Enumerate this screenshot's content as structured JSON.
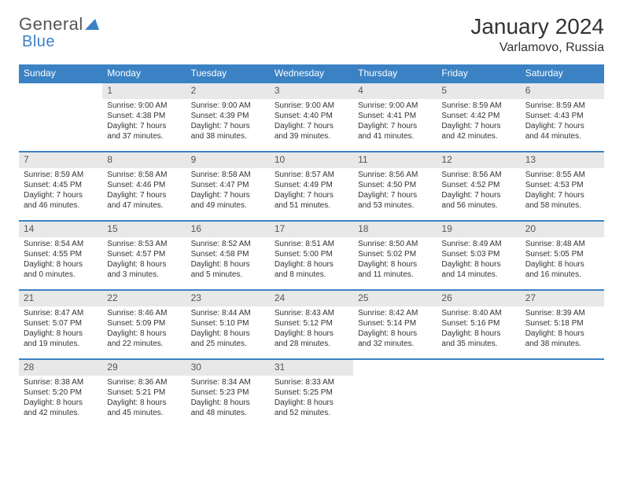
{
  "logo": {
    "text1": "General",
    "text2": "Blue"
  },
  "title": "January 2024",
  "location": "Varlamovo, Russia",
  "weekdays": [
    "Sunday",
    "Monday",
    "Tuesday",
    "Wednesday",
    "Thursday",
    "Friday",
    "Saturday"
  ],
  "colors": {
    "header_bg": "#3b82c4",
    "border": "#3b82c4",
    "daynum_bg": "#e8e8e8"
  },
  "weeks": [
    [
      null,
      {
        "n": "1",
        "sr": "Sunrise: 9:00 AM",
        "ss": "Sunset: 4:38 PM",
        "d1": "Daylight: 7 hours",
        "d2": "and 37 minutes."
      },
      {
        "n": "2",
        "sr": "Sunrise: 9:00 AM",
        "ss": "Sunset: 4:39 PM",
        "d1": "Daylight: 7 hours",
        "d2": "and 38 minutes."
      },
      {
        "n": "3",
        "sr": "Sunrise: 9:00 AM",
        "ss": "Sunset: 4:40 PM",
        "d1": "Daylight: 7 hours",
        "d2": "and 39 minutes."
      },
      {
        "n": "4",
        "sr": "Sunrise: 9:00 AM",
        "ss": "Sunset: 4:41 PM",
        "d1": "Daylight: 7 hours",
        "d2": "and 41 minutes."
      },
      {
        "n": "5",
        "sr": "Sunrise: 8:59 AM",
        "ss": "Sunset: 4:42 PM",
        "d1": "Daylight: 7 hours",
        "d2": "and 42 minutes."
      },
      {
        "n": "6",
        "sr": "Sunrise: 8:59 AM",
        "ss": "Sunset: 4:43 PM",
        "d1": "Daylight: 7 hours",
        "d2": "and 44 minutes."
      }
    ],
    [
      {
        "n": "7",
        "sr": "Sunrise: 8:59 AM",
        "ss": "Sunset: 4:45 PM",
        "d1": "Daylight: 7 hours",
        "d2": "and 46 minutes."
      },
      {
        "n": "8",
        "sr": "Sunrise: 8:58 AM",
        "ss": "Sunset: 4:46 PM",
        "d1": "Daylight: 7 hours",
        "d2": "and 47 minutes."
      },
      {
        "n": "9",
        "sr": "Sunrise: 8:58 AM",
        "ss": "Sunset: 4:47 PM",
        "d1": "Daylight: 7 hours",
        "d2": "and 49 minutes."
      },
      {
        "n": "10",
        "sr": "Sunrise: 8:57 AM",
        "ss": "Sunset: 4:49 PM",
        "d1": "Daylight: 7 hours",
        "d2": "and 51 minutes."
      },
      {
        "n": "11",
        "sr": "Sunrise: 8:56 AM",
        "ss": "Sunset: 4:50 PM",
        "d1": "Daylight: 7 hours",
        "d2": "and 53 minutes."
      },
      {
        "n": "12",
        "sr": "Sunrise: 8:56 AM",
        "ss": "Sunset: 4:52 PM",
        "d1": "Daylight: 7 hours",
        "d2": "and 56 minutes."
      },
      {
        "n": "13",
        "sr": "Sunrise: 8:55 AM",
        "ss": "Sunset: 4:53 PM",
        "d1": "Daylight: 7 hours",
        "d2": "and 58 minutes."
      }
    ],
    [
      {
        "n": "14",
        "sr": "Sunrise: 8:54 AM",
        "ss": "Sunset: 4:55 PM",
        "d1": "Daylight: 8 hours",
        "d2": "and 0 minutes."
      },
      {
        "n": "15",
        "sr": "Sunrise: 8:53 AM",
        "ss": "Sunset: 4:57 PM",
        "d1": "Daylight: 8 hours",
        "d2": "and 3 minutes."
      },
      {
        "n": "16",
        "sr": "Sunrise: 8:52 AM",
        "ss": "Sunset: 4:58 PM",
        "d1": "Daylight: 8 hours",
        "d2": "and 5 minutes."
      },
      {
        "n": "17",
        "sr": "Sunrise: 8:51 AM",
        "ss": "Sunset: 5:00 PM",
        "d1": "Daylight: 8 hours",
        "d2": "and 8 minutes."
      },
      {
        "n": "18",
        "sr": "Sunrise: 8:50 AM",
        "ss": "Sunset: 5:02 PM",
        "d1": "Daylight: 8 hours",
        "d2": "and 11 minutes."
      },
      {
        "n": "19",
        "sr": "Sunrise: 8:49 AM",
        "ss": "Sunset: 5:03 PM",
        "d1": "Daylight: 8 hours",
        "d2": "and 14 minutes."
      },
      {
        "n": "20",
        "sr": "Sunrise: 8:48 AM",
        "ss": "Sunset: 5:05 PM",
        "d1": "Daylight: 8 hours",
        "d2": "and 16 minutes."
      }
    ],
    [
      {
        "n": "21",
        "sr": "Sunrise: 8:47 AM",
        "ss": "Sunset: 5:07 PM",
        "d1": "Daylight: 8 hours",
        "d2": "and 19 minutes."
      },
      {
        "n": "22",
        "sr": "Sunrise: 8:46 AM",
        "ss": "Sunset: 5:09 PM",
        "d1": "Daylight: 8 hours",
        "d2": "and 22 minutes."
      },
      {
        "n": "23",
        "sr": "Sunrise: 8:44 AM",
        "ss": "Sunset: 5:10 PM",
        "d1": "Daylight: 8 hours",
        "d2": "and 25 minutes."
      },
      {
        "n": "24",
        "sr": "Sunrise: 8:43 AM",
        "ss": "Sunset: 5:12 PM",
        "d1": "Daylight: 8 hours",
        "d2": "and 28 minutes."
      },
      {
        "n": "25",
        "sr": "Sunrise: 8:42 AM",
        "ss": "Sunset: 5:14 PM",
        "d1": "Daylight: 8 hours",
        "d2": "and 32 minutes."
      },
      {
        "n": "26",
        "sr": "Sunrise: 8:40 AM",
        "ss": "Sunset: 5:16 PM",
        "d1": "Daylight: 8 hours",
        "d2": "and 35 minutes."
      },
      {
        "n": "27",
        "sr": "Sunrise: 8:39 AM",
        "ss": "Sunset: 5:18 PM",
        "d1": "Daylight: 8 hours",
        "d2": "and 38 minutes."
      }
    ],
    [
      {
        "n": "28",
        "sr": "Sunrise: 8:38 AM",
        "ss": "Sunset: 5:20 PM",
        "d1": "Daylight: 8 hours",
        "d2": "and 42 minutes."
      },
      {
        "n": "29",
        "sr": "Sunrise: 8:36 AM",
        "ss": "Sunset: 5:21 PM",
        "d1": "Daylight: 8 hours",
        "d2": "and 45 minutes."
      },
      {
        "n": "30",
        "sr": "Sunrise: 8:34 AM",
        "ss": "Sunset: 5:23 PM",
        "d1": "Daylight: 8 hours",
        "d2": "and 48 minutes."
      },
      {
        "n": "31",
        "sr": "Sunrise: 8:33 AM",
        "ss": "Sunset: 5:25 PM",
        "d1": "Daylight: 8 hours",
        "d2": "and 52 minutes."
      },
      null,
      null,
      null
    ]
  ]
}
